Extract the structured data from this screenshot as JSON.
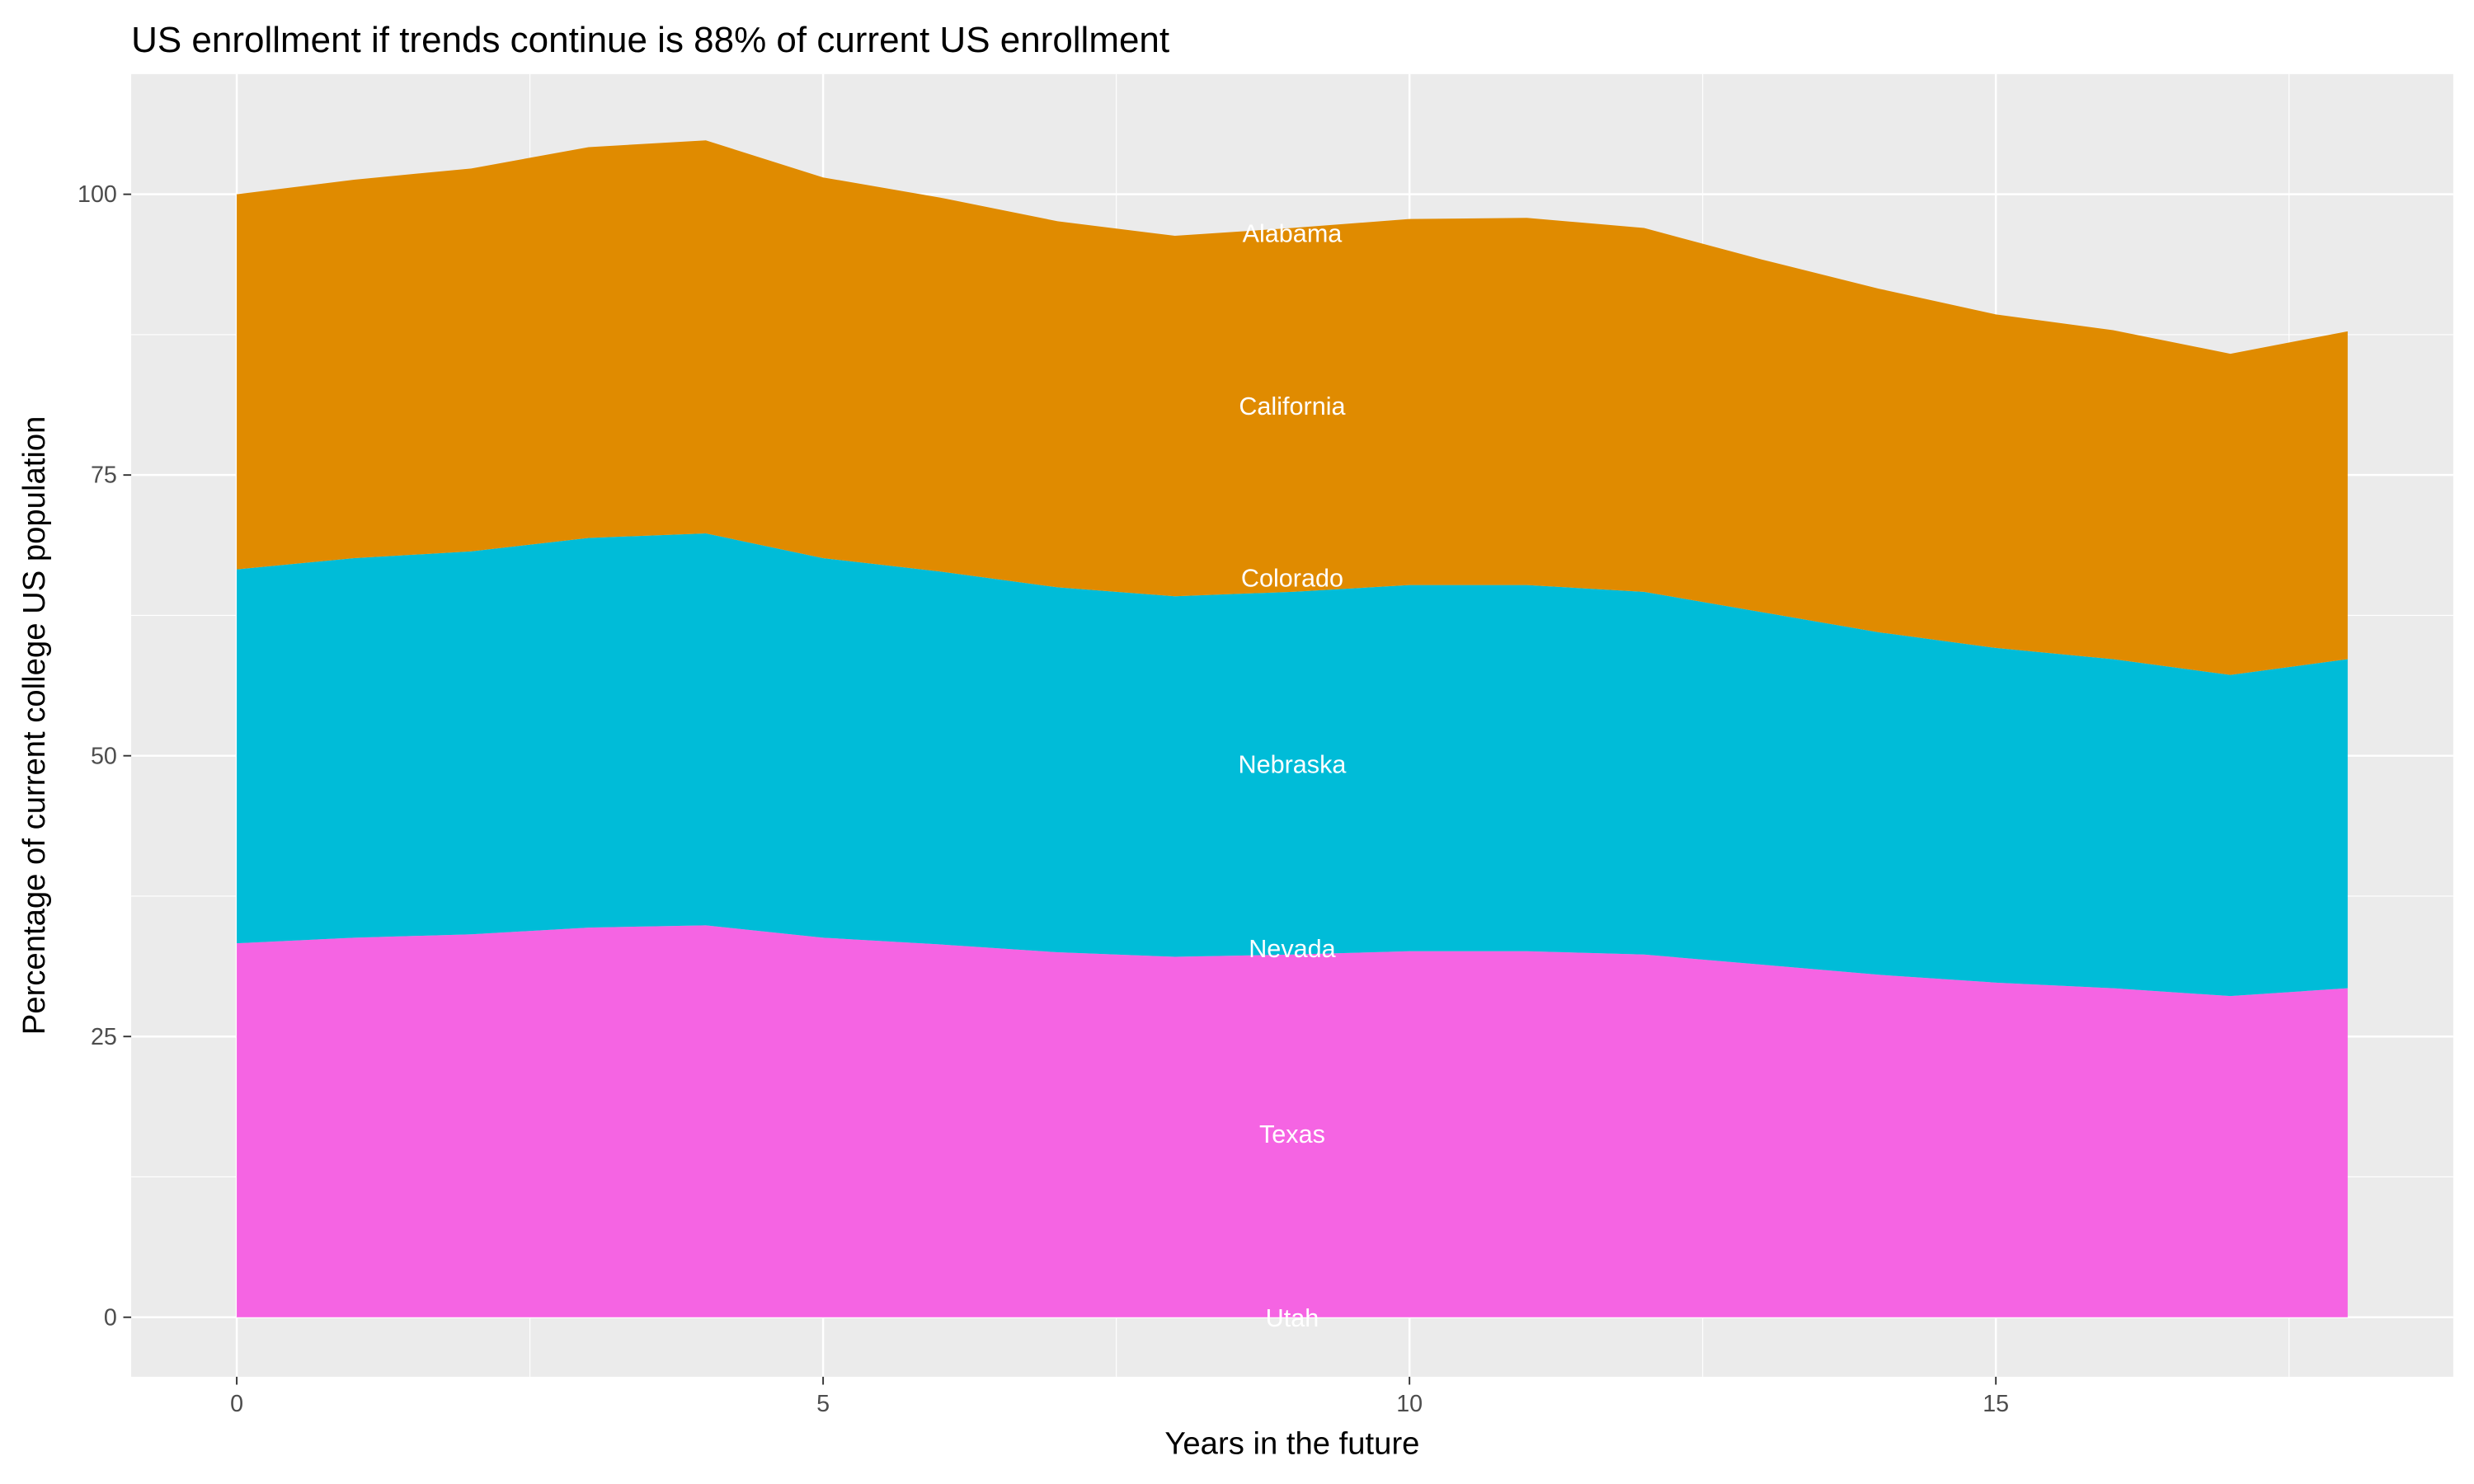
{
  "chart_data": {
    "type": "area",
    "stacked": true,
    "title": "US enrollment if trends continue is 88% of current US enrollment",
    "xlabel": "Years in the future",
    "ylabel": "Percentage of current college US population",
    "x": [
      0,
      1,
      2,
      3,
      4,
      5,
      6,
      7,
      8,
      9,
      10,
      11,
      12,
      13,
      14,
      15,
      16,
      17,
      18
    ],
    "series": [
      {
        "color": "#F564E3",
        "values": [
          33.3,
          33.8,
          34.1,
          34.7,
          34.9,
          33.8,
          33.2,
          32.5,
          32.1,
          32.3,
          32.6,
          32.6,
          32.3,
          31.4,
          30.5,
          29.8,
          29.3,
          28.6,
          29.3
        ]
      },
      {
        "color": "#00BCD8",
        "values": [
          33.3,
          33.8,
          34.1,
          34.7,
          34.9,
          33.8,
          33.2,
          32.5,
          32.1,
          32.3,
          32.6,
          32.6,
          32.3,
          31.4,
          30.5,
          29.8,
          29.3,
          28.6,
          29.3
        ]
      },
      {
        "color": "#E08B00",
        "values": [
          33.4,
          33.7,
          34.1,
          34.8,
          35.0,
          33.9,
          33.3,
          32.6,
          32.1,
          32.4,
          32.6,
          32.7,
          32.4,
          31.4,
          30.6,
          29.7,
          29.3,
          28.6,
          29.2
        ]
      }
    ],
    "annotations": [
      {
        "text": "Alabama",
        "x": 9,
        "y": 96.6
      },
      {
        "text": "California",
        "x": 9,
        "y": 81.2
      },
      {
        "text": "Colorado",
        "x": 9,
        "y": 65.9
      },
      {
        "text": "Nebraska",
        "x": 9,
        "y": 49.3
      },
      {
        "text": "Nevada",
        "x": 9,
        "y": 32.9
      },
      {
        "text": "Texas",
        "x": 9,
        "y": 16.4
      },
      {
        "text": "Utah",
        "x": 9,
        "y": 0
      }
    ],
    "xlim": [
      -0.9,
      18.9
    ],
    "ylim": [
      -5.3,
      110.7
    ],
    "xticks": [
      "0",
      "5",
      "10",
      "15"
    ],
    "xtick_values": [
      0,
      5,
      10,
      15
    ],
    "yticks": [
      "0",
      "25",
      "50",
      "75",
      "100"
    ],
    "ytick_values": [
      0,
      25,
      50,
      75,
      100
    ],
    "grid": true,
    "legend": "none",
    "panel_background": "#EBEBEB"
  }
}
